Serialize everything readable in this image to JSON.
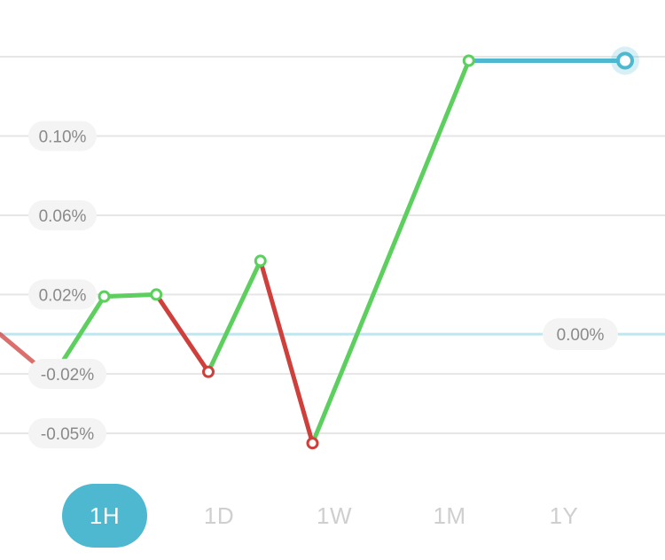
{
  "chart_data": {
    "type": "line",
    "y_ticks": [
      {
        "value": 0.1,
        "label": "0.10%"
      },
      {
        "value": 0.06,
        "label": "0.06%"
      },
      {
        "value": 0.02,
        "label": "0.02%"
      },
      {
        "value": -0.02,
        "label": "-0.02%"
      },
      {
        "value": -0.05,
        "label": "-0.05%"
      }
    ],
    "baseline": {
      "value": 0.0,
      "label": "0.00%"
    },
    "ylim": [
      -0.05,
      0.14
    ],
    "x_range": [
      0,
      12
    ],
    "points": [
      {
        "x": 0.0,
        "y": 0.0
      },
      {
        "x": 1.0,
        "y": -0.022
      },
      {
        "x": 2.0,
        "y": 0.019
      },
      {
        "x": 3.0,
        "y": 0.02
      },
      {
        "x": 4.0,
        "y": -0.019
      },
      {
        "x": 5.0,
        "y": 0.037
      },
      {
        "x": 6.0,
        "y": -0.055
      },
      {
        "x": 9.0,
        "y": 0.138
      },
      {
        "x": 12.0,
        "y": 0.138
      }
    ],
    "colors": {
      "up": "#5ccf5e",
      "down": "#cf403c",
      "current": "#4db8d0",
      "baseline": "#bfe6ee",
      "grid": "#e6e6e6"
    }
  },
  "range_selector": {
    "options": [
      "1H",
      "1D",
      "1W",
      "1M",
      "1Y"
    ],
    "selected": "1H"
  }
}
